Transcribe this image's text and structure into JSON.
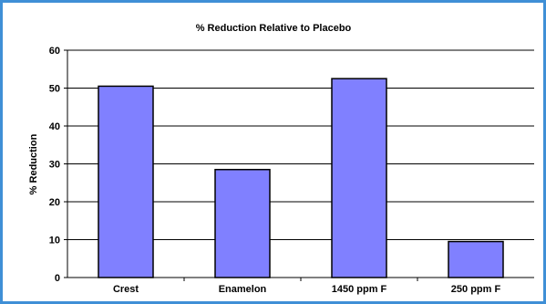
{
  "chart_data": {
    "type": "bar",
    "title": "% Reduction Relative to Placebo",
    "xlabel": "",
    "ylabel": "% Reduction",
    "categories": [
      "Crest",
      "Enamelon",
      "1450 ppm F",
      "250 ppm F"
    ],
    "values": [
      50.5,
      28.5,
      52.5,
      9.5
    ],
    "ylim": [
      0,
      60
    ],
    "yticks": [
      "0",
      "10",
      "20",
      "30",
      "40",
      "50",
      "60"
    ],
    "grid": true,
    "legend": "none",
    "colors": {
      "bar": "#8080ff",
      "frame": "#3f8fd6"
    }
  }
}
